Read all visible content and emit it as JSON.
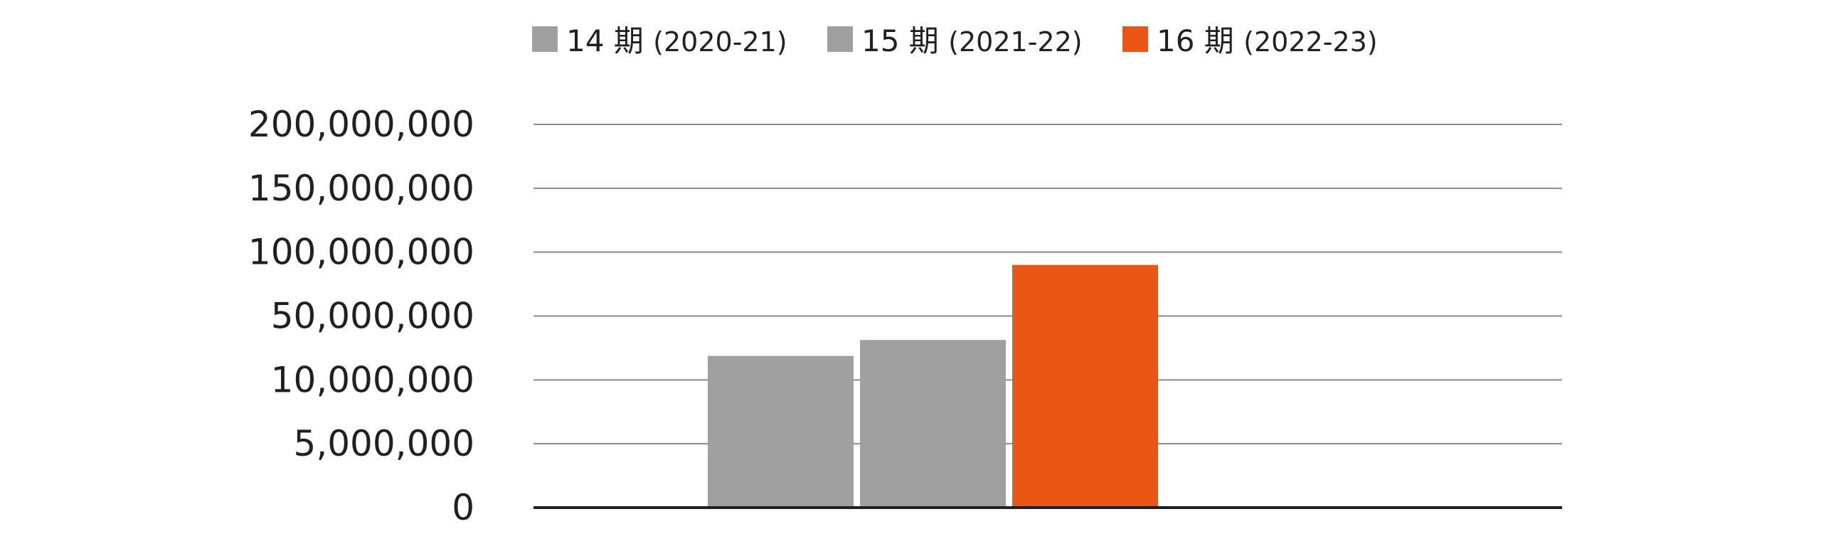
{
  "chart_data": {
    "type": "bar",
    "title": "",
    "xlabel": "",
    "ylabel": "",
    "y_ticks": [
      "200,000,000",
      "150,000,000",
      "100,000,000",
      "50,000,000",
      "10,000,000",
      "5,000,000",
      "0"
    ],
    "y_tick_values": [
      200000000,
      150000000,
      100000000,
      50000000,
      10000000,
      5000000,
      0
    ],
    "grid": true,
    "legend_position": "top-center",
    "series": [
      {
        "name": "14期 (2020-21)",
        "period": "14",
        "kanji": "期",
        "years": "(2020-21)",
        "color": "#a0a0a0",
        "value": 25000000
      },
      {
        "name": "15期 (2021-22)",
        "period": "15",
        "kanji": "期",
        "years": "(2021-22)",
        "color": "#a0a0a0",
        "value": 35000000
      },
      {
        "name": "16期 (2022-23)",
        "period": "16",
        "kanji": "期",
        "years": "(2022-23)",
        "color": "#e95513",
        "value": 90000000
      }
    ]
  }
}
